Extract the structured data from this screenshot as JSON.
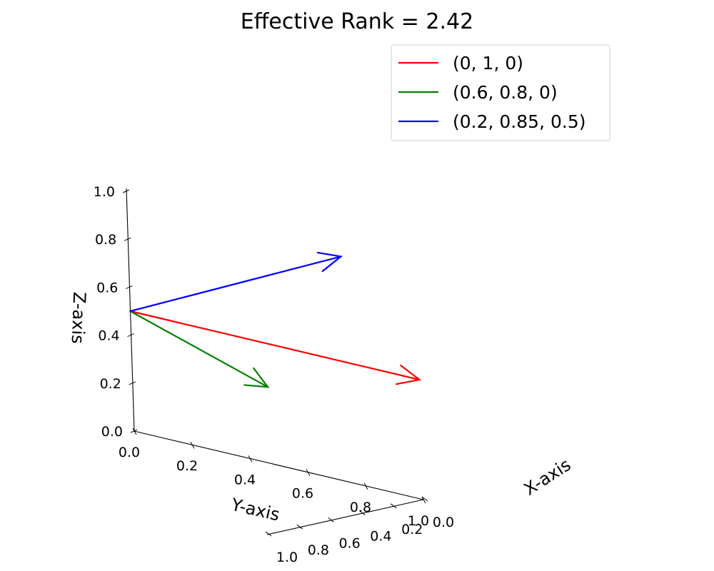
{
  "chart_data": {
    "type": "3d-quiver",
    "title": "Effective Rank = 2.42",
    "origin": [
      0,
      0,
      0.5
    ],
    "series": [
      {
        "name": "(0, 1, 0)",
        "vector": [
          0,
          1,
          0
        ],
        "color": "#ff0000"
      },
      {
        "name": "(0.6, 0.8, 0)",
        "vector": [
          0.6,
          0.8,
          0
        ],
        "color": "#008000"
      },
      {
        "name": "(0.2, 0.85, 0.5)",
        "vector": [
          0.2,
          0.85,
          0.5
        ],
        "color": "#0000ff"
      }
    ],
    "axes": {
      "x": {
        "label": "X-axis",
        "range": [
          0,
          1
        ],
        "ticks": [
          "0.0",
          "0.2",
          "0.4",
          "0.6",
          "0.8",
          "1.0"
        ]
      },
      "y": {
        "label": "Y-axis",
        "range": [
          0,
          1
        ],
        "ticks": [
          "0.0",
          "0.2",
          "0.4",
          "0.6",
          "0.8",
          "1.0"
        ]
      },
      "z": {
        "label": "Z-axis",
        "range": [
          0,
          1
        ],
        "ticks": [
          "0.0",
          "0.2",
          "0.4",
          "0.6",
          "0.8",
          "1.0"
        ]
      }
    },
    "legend_position": "top-right",
    "grid": false
  }
}
